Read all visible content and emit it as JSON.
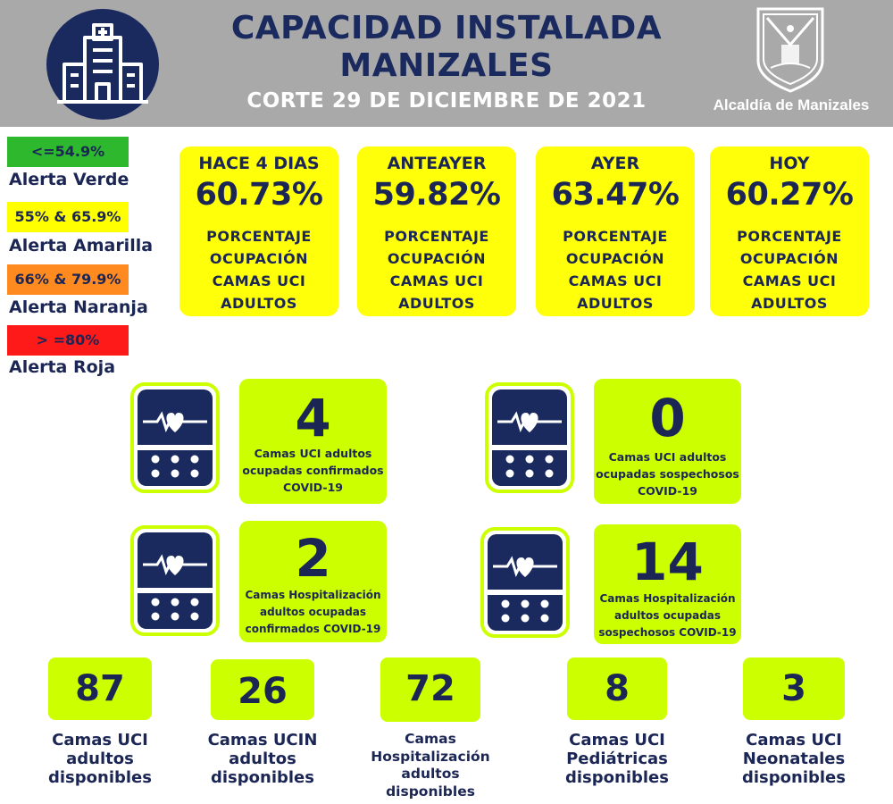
{
  "header": {
    "title_line1": "CAPACIDAD INSTALADA",
    "title_line2": "MANIZALES",
    "subtitle": "CORTE 29 DE DICIEMBRE  DE 2021",
    "org": "Alcaldía de Manizales",
    "logo_icon": "hospital-building-icon",
    "shield_icon": "coat-of-arms-icon"
  },
  "legend": [
    {
      "range": "<=54.9%",
      "label": "Alerta Verde",
      "color": "#2eb82e"
    },
    {
      "range": "55% & 65.9%",
      "label": "Alerta Amarilla",
      "color": "#ffff00"
    },
    {
      "range": "66% & 79.9%",
      "label": "Alerta Naranja",
      "color": "#ff8a1f"
    },
    {
      "range": "> =80%",
      "label": "Alerta Roja",
      "color": "#ff1a1a"
    }
  ],
  "occupancy": [
    {
      "period": "HACE 4 DIAS",
      "value": "60.73%",
      "desc": [
        "PORCENTAJE",
        "OCUPACIÓN",
        "CAMAS UCI",
        "ADULTOS"
      ]
    },
    {
      "period": "ANTEAYER",
      "value": "59.82%",
      "desc": [
        "PORCENTAJE",
        "OCUPACIÓN",
        "CAMAS UCI",
        "ADULTOS"
      ]
    },
    {
      "period": "AYER",
      "value": "63.47%",
      "desc": [
        "PORCENTAJE",
        "OCUPACIÓN",
        "CAMAS UCI",
        "ADULTOS"
      ]
    },
    {
      "period": "HOY",
      "value": "60.27%",
      "desc": [
        "PORCENTAJE",
        "OCUPACIÓN",
        "CAMAS UCI",
        "ADULTOS"
      ]
    }
  ],
  "stats": [
    {
      "value": "4",
      "lines": [
        "Camas UCI adultos",
        "ocupadas confirmados",
        "COVID-19"
      ]
    },
    {
      "value": "0",
      "lines": [
        "Camas UCI adultos",
        "ocupadas sospechosos",
        "COVID-19"
      ]
    },
    {
      "value": "2",
      "lines": [
        "Camas  Hospitalización",
        "adultos ocupadas",
        "confirmados COVID-19"
      ]
    },
    {
      "value": "14",
      "lines": [
        "Camas  Hospitalización",
        "adultos ocupadas",
        "sospechosos COVID-19"
      ]
    }
  ],
  "available": [
    {
      "value": "87",
      "lines": [
        "Camas UCI",
        "adultos",
        "disponibles"
      ]
    },
    {
      "value": "26",
      "lines": [
        "Camas UCIN",
        "adultos",
        "disponibles"
      ]
    },
    {
      "value": "72",
      "lines": [
        "Camas",
        "Hospitalización",
        "adultos",
        "disponibles"
      ]
    },
    {
      "value": "8",
      "lines": [
        "Camas  UCI",
        "Pediátricas",
        "disponibles"
      ]
    },
    {
      "value": "3",
      "lines": [
        "Camas  UCI",
        "Neonatales",
        "disponibles"
      ]
    }
  ],
  "colors": {
    "navy": "#1b2a5e",
    "lime": "#ccff00",
    "yellow": "#ffff0a",
    "header_gray": "#a9a9a9"
  }
}
